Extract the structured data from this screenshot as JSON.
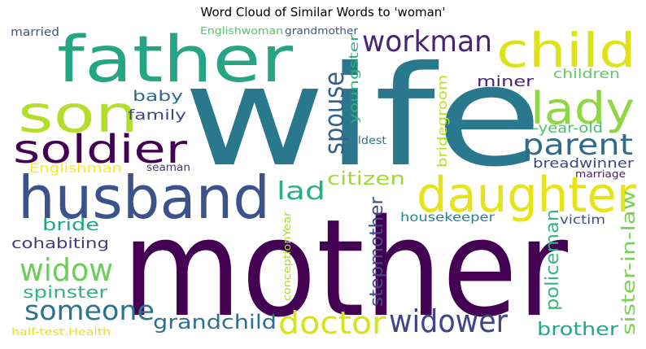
{
  "chart_data": {
    "type": "wordcloud",
    "title": "Word Cloud of Similar Words to 'woman'",
    "words": [
      {
        "text": "wife",
        "color": "#2a788e"
      },
      {
        "text": "mother",
        "color": "#440154"
      },
      {
        "text": "father",
        "color": "#25a584"
      },
      {
        "text": "husband",
        "color": "#3b528b"
      },
      {
        "text": "son",
        "color": "#b5de2b"
      },
      {
        "text": "daughter",
        "color": "#e5e419"
      },
      {
        "text": "soldier",
        "color": "#440154"
      },
      {
        "text": "child",
        "color": "#dde318"
      },
      {
        "text": "lady",
        "color": "#8fd744"
      },
      {
        "text": "workman",
        "color": "#482475"
      },
      {
        "text": "widow",
        "color": "#6ccd5a"
      },
      {
        "text": "someone",
        "color": "#2c728e"
      },
      {
        "text": "doctor",
        "color": "#d8e219"
      },
      {
        "text": "widower",
        "color": "#414487"
      },
      {
        "text": "parent",
        "color": "#306a8e"
      },
      {
        "text": "spouse",
        "color": "#33628d"
      },
      {
        "text": "lad",
        "color": "#29af7f"
      },
      {
        "text": "grandchild",
        "color": "#2d708e"
      },
      {
        "text": "citizen",
        "color": "#a0da39"
      },
      {
        "text": "stepmother",
        "color": "#3e4c8a"
      },
      {
        "text": "policeman",
        "color": "#35b779"
      },
      {
        "text": "sister-in-law",
        "color": "#7ad151"
      },
      {
        "text": "brother",
        "color": "#22a884"
      },
      {
        "text": "cohabiting",
        "color": "#443983"
      },
      {
        "text": "spinster",
        "color": "#2fb47c"
      },
      {
        "text": "bride",
        "color": "#20a486"
      },
      {
        "text": "miner",
        "color": "#482173"
      },
      {
        "text": "children",
        "color": "#5ec962"
      },
      {
        "text": "-year-old",
        "color": "#4ac16d"
      },
      {
        "text": "breadwinner",
        "color": "#414487"
      },
      {
        "text": "bridegroom",
        "color": "#bddf26"
      },
      {
        "text": "youngster",
        "color": "#2db27d"
      },
      {
        "text": "baby",
        "color": "#31688e"
      },
      {
        "text": "family",
        "color": "#3e4989"
      },
      {
        "text": "Englishman",
        "color": "#fde725"
      },
      {
        "text": "seaman",
        "color": "#453781"
      },
      {
        "text": "eldest",
        "color": "#2c728e"
      },
      {
        "text": "marriage",
        "color": "#481f70"
      },
      {
        "text": "housekeeper",
        "color": "#26828e"
      },
      {
        "text": "victim",
        "color": "#3b528b"
      },
      {
        "text": "married",
        "color": "#3b528b"
      },
      {
        "text": "Englishwoman",
        "color": "#52c569"
      },
      {
        "text": "grandmother",
        "color": "#39568c"
      },
      {
        "text": "conceptionYear",
        "color": "#a5db36"
      },
      {
        "text": "half-test.Health",
        "color": "#e2e418"
      }
    ]
  }
}
